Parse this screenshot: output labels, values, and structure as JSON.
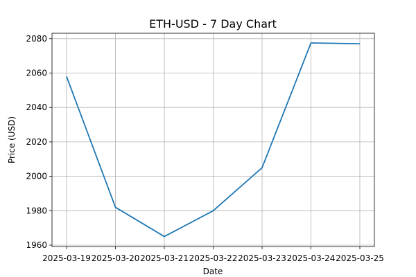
{
  "chart_data": {
    "type": "line",
    "title": "ETH-USD - 7 Day Chart",
    "xlabel": "Date",
    "ylabel": "Price (USD)",
    "x": [
      "2025-03-19",
      "2025-03-20",
      "2025-03-21",
      "2025-03-22",
      "2025-03-23",
      "2025-03-24",
      "2025-03-25"
    ],
    "series": [
      {
        "values": [
          2058,
          1982,
          1965,
          1980,
          2005,
          2077.5,
          2077
        ],
        "color": "#1f77b4"
      }
    ],
    "ylim": [
      1960,
      2080
    ],
    "yticks": [
      1960,
      1980,
      2000,
      2020,
      2040,
      2060,
      2080
    ],
    "ytick_labels": [
      "1960",
      "1980",
      "2000",
      "2020",
      "2040",
      "2060",
      "2080"
    ],
    "grid": true,
    "legend": false
  }
}
